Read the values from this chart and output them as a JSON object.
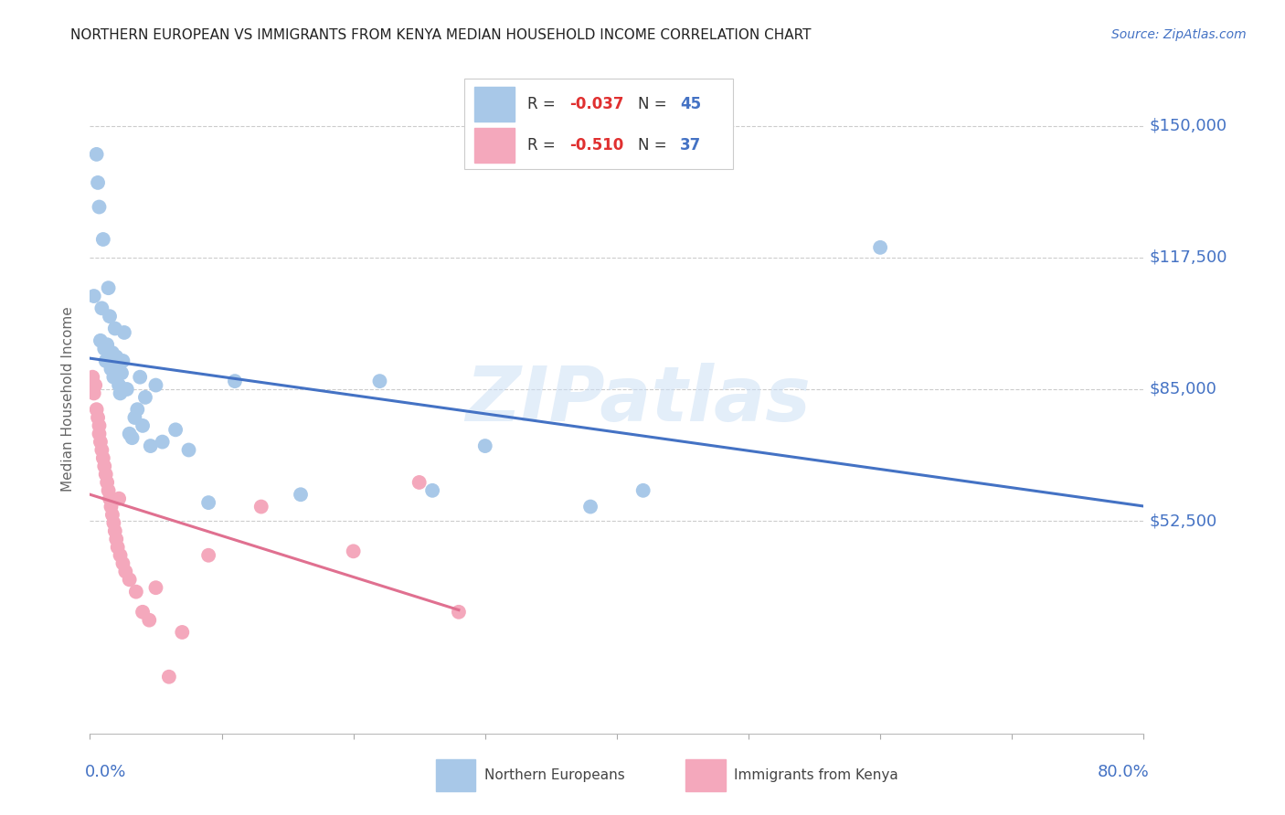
{
  "title": "NORTHERN EUROPEAN VS IMMIGRANTS FROM KENYA MEDIAN HOUSEHOLD INCOME CORRELATION CHART",
  "source": "Source: ZipAtlas.com",
  "ylabel": "Median Household Income",
  "xlim": [
    0.0,
    0.8
  ],
  "ylim": [
    0,
    165000
  ],
  "legend1_R": "-0.037",
  "legend1_N": "45",
  "legend2_R": "-0.510",
  "legend2_N": "37",
  "color_blue_scatter": "#a8c8e8",
  "color_pink_scatter": "#f4a8bc",
  "color_blue_line": "#4472c4",
  "color_pink_line": "#e07090",
  "color_label": "#4472c4",
  "watermark": "ZIPatlas",
  "blue_x": [
    0.003,
    0.005,
    0.006,
    0.007,
    0.008,
    0.009,
    0.01,
    0.011,
    0.012,
    0.013,
    0.014,
    0.015,
    0.016,
    0.017,
    0.018,
    0.019,
    0.02,
    0.021,
    0.022,
    0.023,
    0.024,
    0.025,
    0.026,
    0.028,
    0.03,
    0.032,
    0.034,
    0.036,
    0.038,
    0.04,
    0.042,
    0.046,
    0.05,
    0.055,
    0.065,
    0.075,
    0.09,
    0.11,
    0.16,
    0.22,
    0.26,
    0.3,
    0.38,
    0.42,
    0.6
  ],
  "blue_y": [
    108000,
    143000,
    136000,
    130000,
    97000,
    105000,
    122000,
    95000,
    92000,
    96000,
    110000,
    103000,
    90000,
    94000,
    88000,
    100000,
    93000,
    91000,
    86000,
    84000,
    89000,
    92000,
    99000,
    85000,
    74000,
    73000,
    78000,
    80000,
    88000,
    76000,
    83000,
    71000,
    86000,
    72000,
    75000,
    70000,
    57000,
    87000,
    59000,
    87000,
    60000,
    71000,
    56000,
    60000,
    120000
  ],
  "pink_x": [
    0.002,
    0.003,
    0.004,
    0.005,
    0.006,
    0.007,
    0.007,
    0.008,
    0.009,
    0.01,
    0.011,
    0.012,
    0.013,
    0.014,
    0.015,
    0.016,
    0.017,
    0.018,
    0.019,
    0.02,
    0.021,
    0.022,
    0.023,
    0.025,
    0.027,
    0.03,
    0.035,
    0.04,
    0.045,
    0.05,
    0.06,
    0.07,
    0.09,
    0.13,
    0.2,
    0.25,
    0.28
  ],
  "pink_y": [
    88000,
    84000,
    86000,
    80000,
    78000,
    76000,
    74000,
    72000,
    70000,
    68000,
    66000,
    64000,
    62000,
    60000,
    58000,
    56000,
    54000,
    52000,
    50000,
    48000,
    46000,
    58000,
    44000,
    42000,
    40000,
    38000,
    35000,
    30000,
    28000,
    36000,
    14000,
    25000,
    44000,
    56000,
    45000,
    62000,
    30000
  ]
}
